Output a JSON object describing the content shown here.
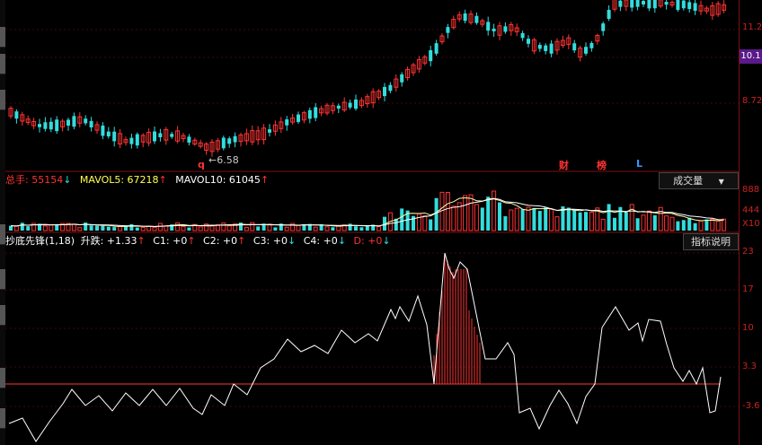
{
  "price_axis": {
    "labels": [
      "11.2",
      "10.1",
      "8.72"
    ],
    "current_price": "10.1",
    "low_marker": "6.58",
    "low_mark_letter": "q"
  },
  "event_tags": {
    "cai": "财",
    "bang": "榜",
    "l": "L"
  },
  "volume": {
    "total_label": "总手: 55154",
    "mavol5_label": "MAVOL5: 67218",
    "mavol10_label": "MAVOL10: 61045",
    "axis_labels": [
      "888",
      "444",
      "X10"
    ],
    "dropdown_label": "成交量",
    "dropdown_arrow": "▼",
    "arrows": {
      "total": "↓",
      "mavol5": "↑",
      "mavol10": "↑"
    }
  },
  "indicator": {
    "name_label": "抄底先锋(1,18)",
    "rise_label": "升跌: +1.33",
    "c1_label": "C1: +0",
    "c2_label": "C2: +0",
    "c3_label": "C3: +0",
    "c4_label": "C4: +0",
    "d_label": "D: +0",
    "arrows": {
      "rise": "↑",
      "c1": "↑",
      "c2": "↑",
      "c3": "↓",
      "c4": "↓",
      "d": "↓"
    },
    "help_button": "指标说明",
    "axis_labels": [
      "23",
      "17",
      "10",
      "3.3",
      "-3.6"
    ]
  },
  "colors": {
    "up": "#ff3333",
    "down": "#33dddd",
    "ma_line": "#ffffaa",
    "ind_line": "#ffffff",
    "grid": "#7a1010"
  }
}
